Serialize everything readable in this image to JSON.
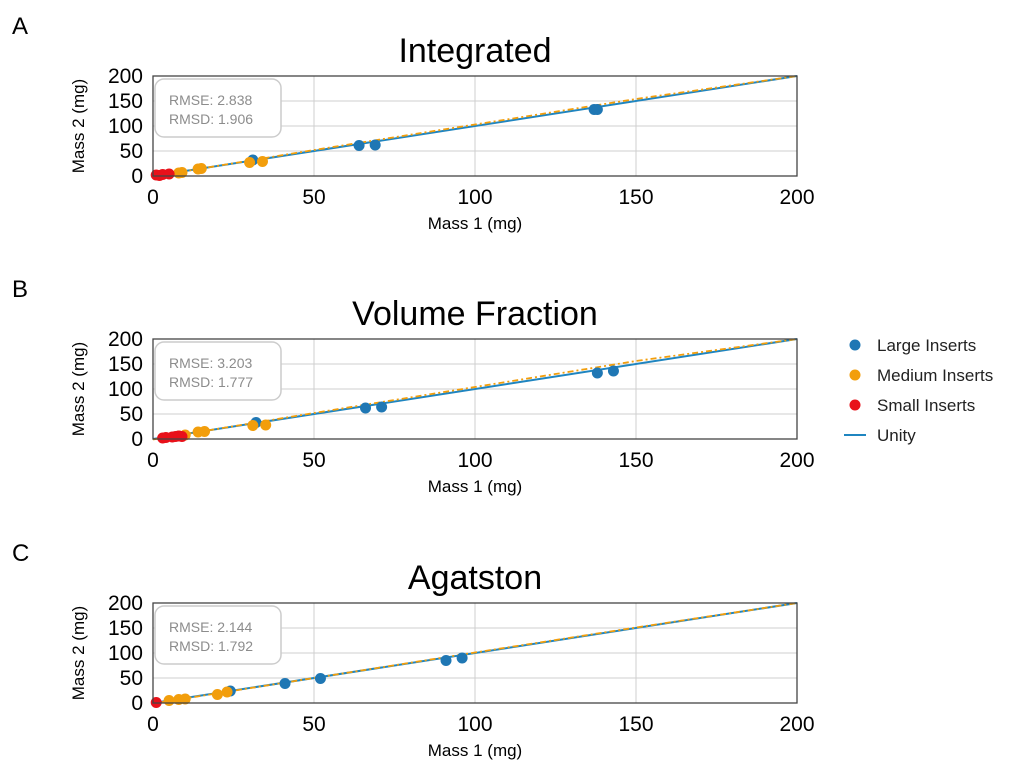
{
  "figure": {
    "legend": {
      "placement": "right",
      "items": [
        {
          "label": "Large Inserts",
          "color": "#1f77b4",
          "kind": "marker"
        },
        {
          "label": "Medium Inserts",
          "color": "#f29e0c",
          "kind": "marker"
        },
        {
          "label": "Small Inserts",
          "color": "#e8111a",
          "kind": "marker"
        },
        {
          "label": "Unity",
          "color": "#1f85c0",
          "kind": "line"
        }
      ]
    }
  },
  "chart_data": [
    {
      "panel": "A",
      "type": "scatter",
      "title": "Integrated",
      "xlabel": "Mass 1 (mg)",
      "ylabel": "Mass 2 (mg)",
      "xlim": [
        0,
        200
      ],
      "ylim": [
        0,
        200
      ],
      "xticks": [
        "0",
        "50",
        "100",
        "150",
        "200"
      ],
      "yticks": [
        "0",
        "50",
        "100",
        "150",
        "200"
      ],
      "grid": true,
      "stats": [
        "RMSE: 2.838",
        "RMSD: 1.906"
      ],
      "series": [
        {
          "name": "Large Inserts",
          "color": "#1f77b4",
          "points": [
            [
              31,
              32
            ],
            [
              64,
              61
            ],
            [
              69,
              62
            ],
            [
              137,
              133
            ],
            [
              138,
              133
            ]
          ]
        },
        {
          "name": "Medium Inserts",
          "color": "#f29e0c",
          "points": [
            [
              8,
              6
            ],
            [
              9,
              7
            ],
            [
              14,
              14
            ],
            [
              15,
              15
            ],
            [
              30,
              27
            ],
            [
              34,
              29
            ]
          ]
        },
        {
          "name": "Small Inserts",
          "color": "#e8111a",
          "points": [
            [
              1,
              2
            ],
            [
              2,
              1
            ],
            [
              3,
              3
            ],
            [
              5,
              4
            ]
          ]
        }
      ],
      "unity": [
        [
          0,
          0
        ],
        [
          200,
          200
        ]
      ],
      "fit": [
        [
          0,
          -1
        ],
        [
          50,
          52
        ],
        [
          100,
          103
        ],
        [
          150,
          154
        ],
        [
          200,
          202
        ]
      ]
    },
    {
      "panel": "B",
      "type": "scatter",
      "title": "Volume Fraction",
      "xlabel": "Mass 1 (mg)",
      "ylabel": "Mass 2 (mg)",
      "xlim": [
        0,
        200
      ],
      "ylim": [
        0,
        200
      ],
      "xticks": [
        "0",
        "50",
        "100",
        "150",
        "200"
      ],
      "yticks": [
        "0",
        "50",
        "100",
        "150",
        "200"
      ],
      "grid": true,
      "stats": [
        "RMSE: 3.203",
        "RMSD: 1.777"
      ],
      "series": [
        {
          "name": "Large Inserts",
          "color": "#1f77b4",
          "points": [
            [
              32,
              33
            ],
            [
              66,
              62
            ],
            [
              71,
              64
            ],
            [
              138,
              132
            ],
            [
              143,
              136
            ]
          ]
        },
        {
          "name": "Medium Inserts",
          "color": "#f29e0c",
          "points": [
            [
              8,
              6
            ],
            [
              10,
              8
            ],
            [
              14,
              14
            ],
            [
              16,
              15
            ],
            [
              31,
              27
            ],
            [
              35,
              28
            ]
          ]
        },
        {
          "name": "Small Inserts",
          "color": "#e8111a",
          "points": [
            [
              3,
              2
            ],
            [
              4,
              3
            ],
            [
              6,
              4
            ],
            [
              7,
              5
            ],
            [
              8,
              6
            ],
            [
              9,
              5
            ]
          ]
        }
      ],
      "unity": [
        [
          0,
          0
        ],
        [
          200,
          200
        ]
      ],
      "fit": [
        [
          0,
          -1
        ],
        [
          50,
          52
        ],
        [
          100,
          104
        ],
        [
          150,
          156
        ],
        [
          200,
          204
        ]
      ]
    },
    {
      "panel": "C",
      "type": "scatter",
      "title": "Agatston",
      "xlabel": "Mass 1 (mg)",
      "ylabel": "Mass 2 (mg)",
      "xlim": [
        0,
        200
      ],
      "ylim": [
        0,
        200
      ],
      "xticks": [
        "0",
        "50",
        "100",
        "150",
        "200"
      ],
      "yticks": [
        "0",
        "50",
        "100",
        "150",
        "200"
      ],
      "grid": true,
      "stats": [
        "RMSE: 2.144",
        "RMSD: 1.792"
      ],
      "series": [
        {
          "name": "Large Inserts",
          "color": "#1f77b4",
          "points": [
            [
              24,
              24
            ],
            [
              41,
              39
            ],
            [
              52,
              49
            ],
            [
              91,
              85
            ],
            [
              96,
              90
            ]
          ]
        },
        {
          "name": "Medium Inserts",
          "color": "#f29e0c",
          "points": [
            [
              5,
              5
            ],
            [
              8,
              7
            ],
            [
              10,
              8
            ],
            [
              20,
              17
            ],
            [
              23,
              22
            ]
          ]
        },
        {
          "name": "Small Inserts",
          "color": "#e8111a",
          "points": [
            [
              1,
              1
            ]
          ]
        }
      ],
      "unity": [
        [
          0,
          0
        ],
        [
          200,
          200
        ]
      ],
      "fit": [
        [
          0,
          -1
        ],
        [
          50,
          50
        ],
        [
          100,
          101
        ],
        [
          150,
          151
        ],
        [
          200,
          202
        ]
      ]
    }
  ]
}
